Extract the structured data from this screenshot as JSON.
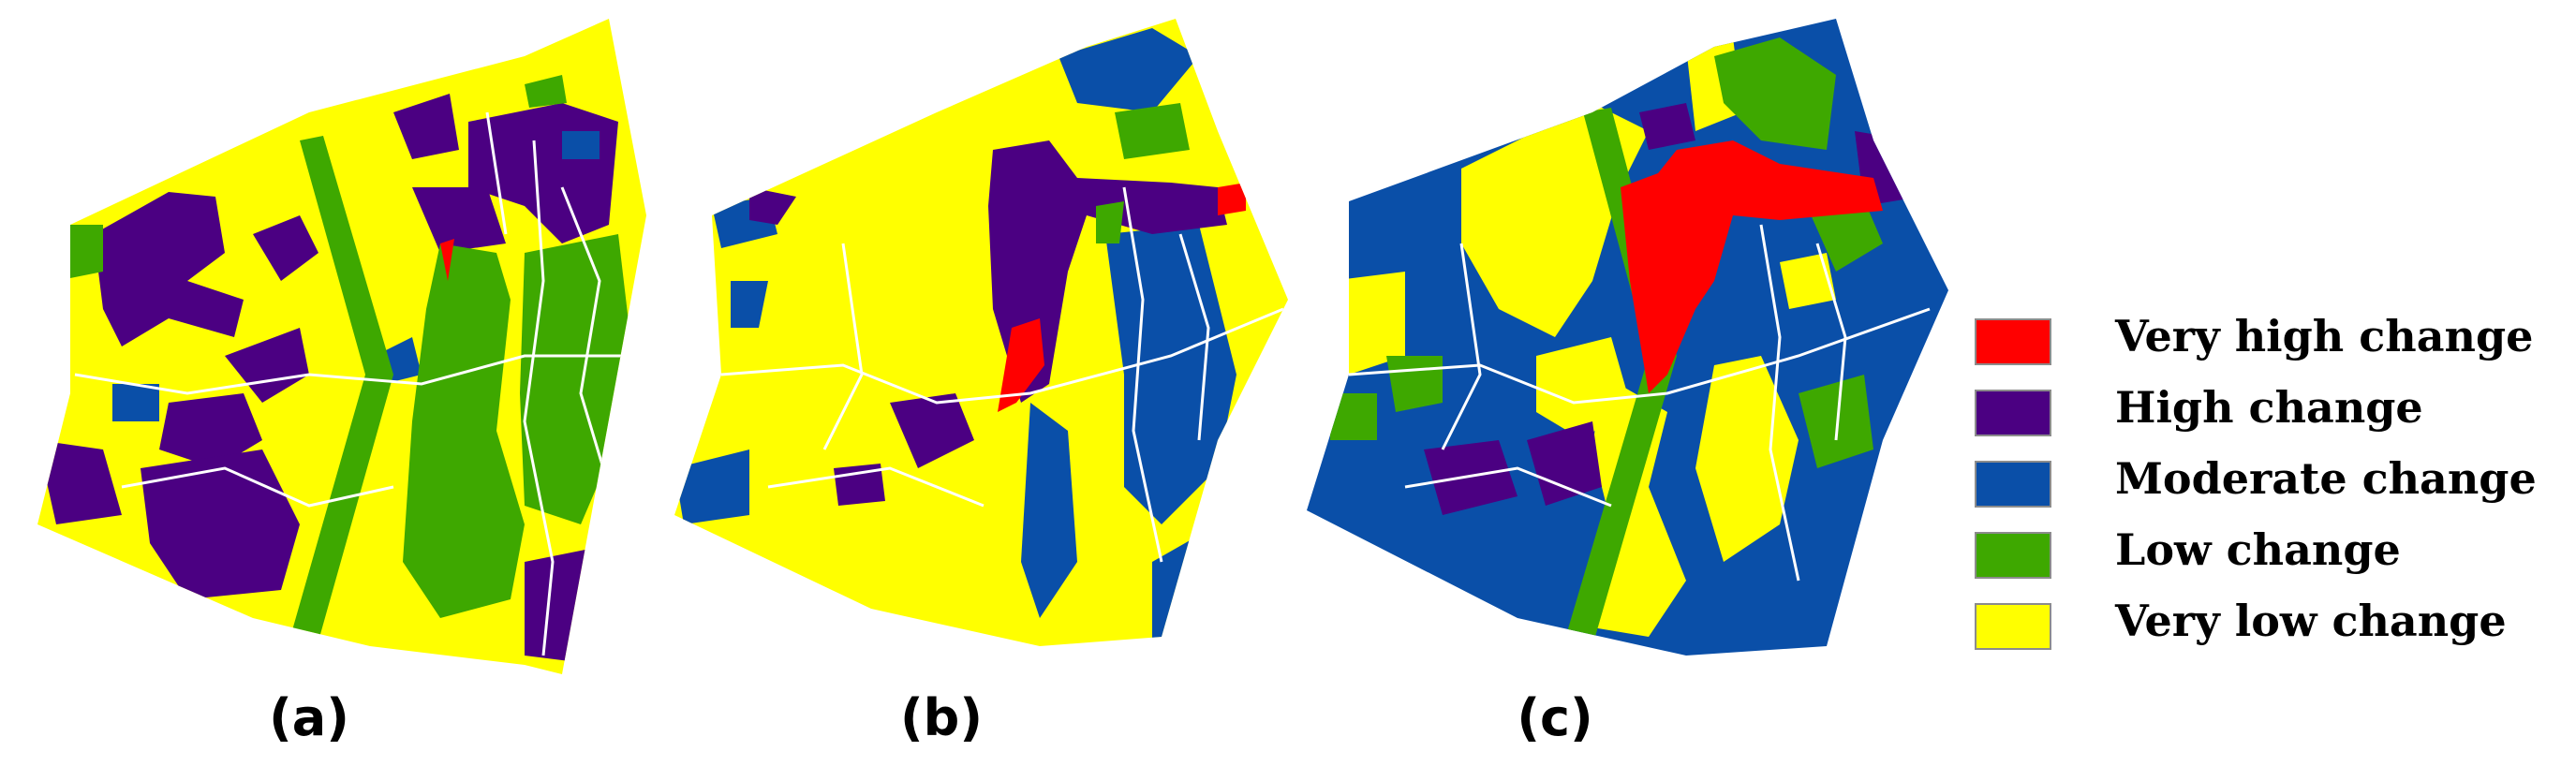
{
  "figure": {
    "panels": [
      {
        "id": "a",
        "label": "(a)"
      },
      {
        "id": "b",
        "label": "(b)"
      },
      {
        "id": "c",
        "label": "(c)"
      }
    ]
  },
  "legend": {
    "items": [
      {
        "label": "Very high change",
        "color": "#ff0000"
      },
      {
        "label": "High change",
        "color": "#4b0082"
      },
      {
        "label": "Moderate change",
        "color": "#0a4fa8"
      },
      {
        "label": "Low change",
        "color": "#3ea800"
      },
      {
        "label": "Very low change",
        "color": "#ffff00"
      }
    ]
  },
  "colors": {
    "very_high": "#ff0000",
    "high": "#4b0082",
    "moderate": "#0a4fa8",
    "low": "#3ea800",
    "very_low": "#ffff00",
    "roads": "#ffffff"
  }
}
